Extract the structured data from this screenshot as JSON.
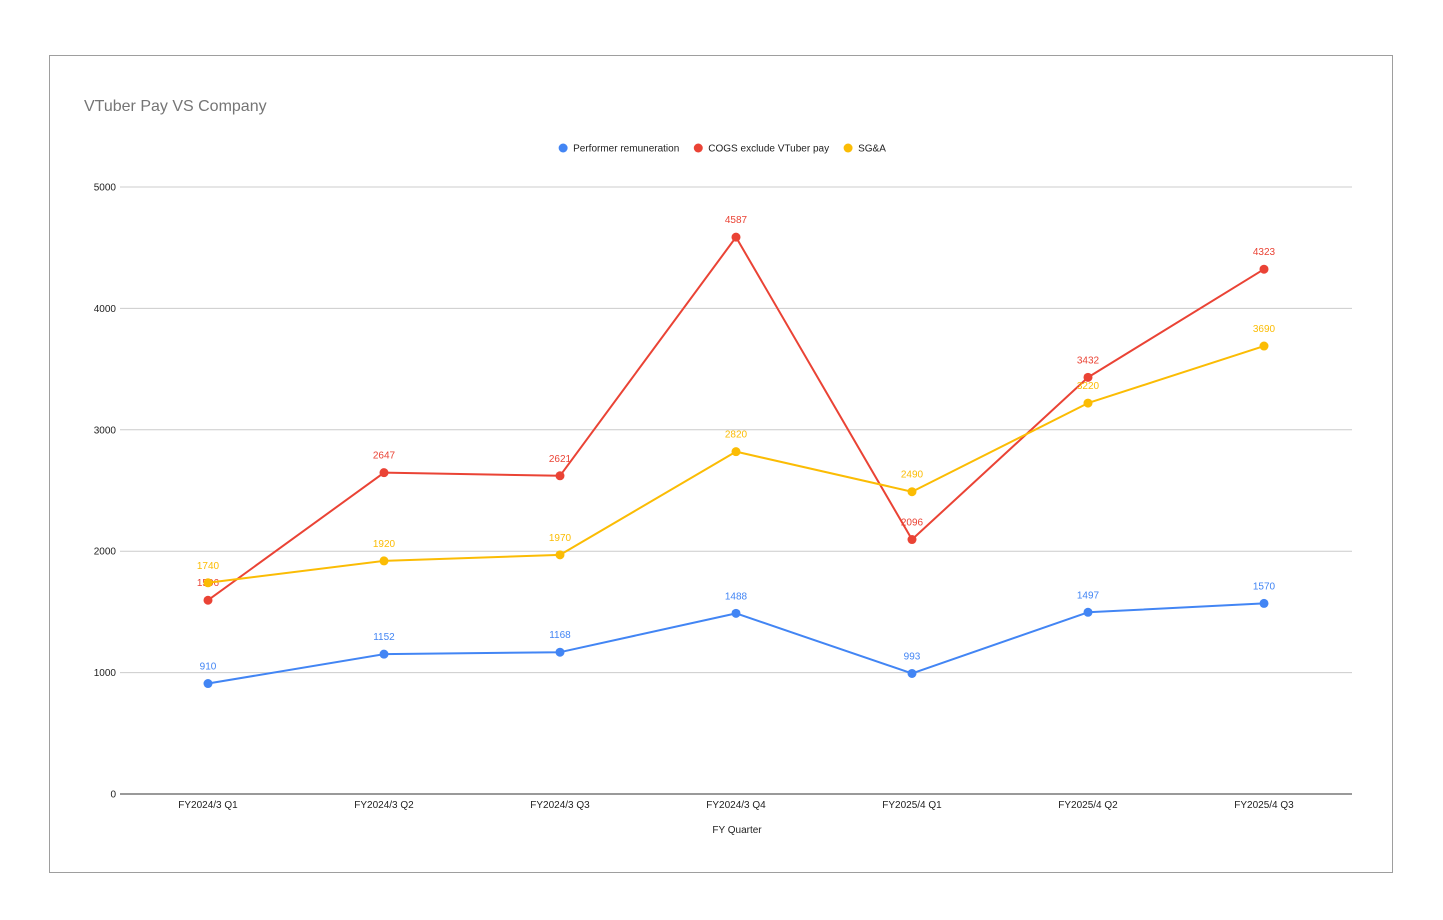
{
  "chart_data": {
    "type": "line",
    "title": "VTuber Pay VS Company",
    "xlabel": "FY Quarter",
    "ylabel": "",
    "ylim": [
      0,
      5000
    ],
    "yticks": [
      0,
      1000,
      2000,
      3000,
      4000,
      5000
    ],
    "grid": true,
    "legend_position": "top-center",
    "categories": [
      "FY2024/3 Q1",
      "FY2024/3 Q2",
      "FY2024/3 Q3",
      "FY2024/3 Q4",
      "FY2025/4 Q1",
      "FY2025/4 Q2",
      "FY2025/4 Q3"
    ],
    "series": [
      {
        "name": "Performer remuneration",
        "color": "#4285f4",
        "values": [
          910,
          1152,
          1168,
          1488,
          993,
          1497,
          1570
        ]
      },
      {
        "name": "COGS exclude VTuber pay",
        "color": "#ea4335",
        "values": [
          1596,
          2647,
          2621,
          4587,
          2096,
          3432,
          4323
        ]
      },
      {
        "name": "SG&A",
        "color": "#fbbc04",
        "values": [
          1740,
          1920,
          1970,
          2820,
          2490,
          3220,
          3690
        ]
      }
    ]
  }
}
